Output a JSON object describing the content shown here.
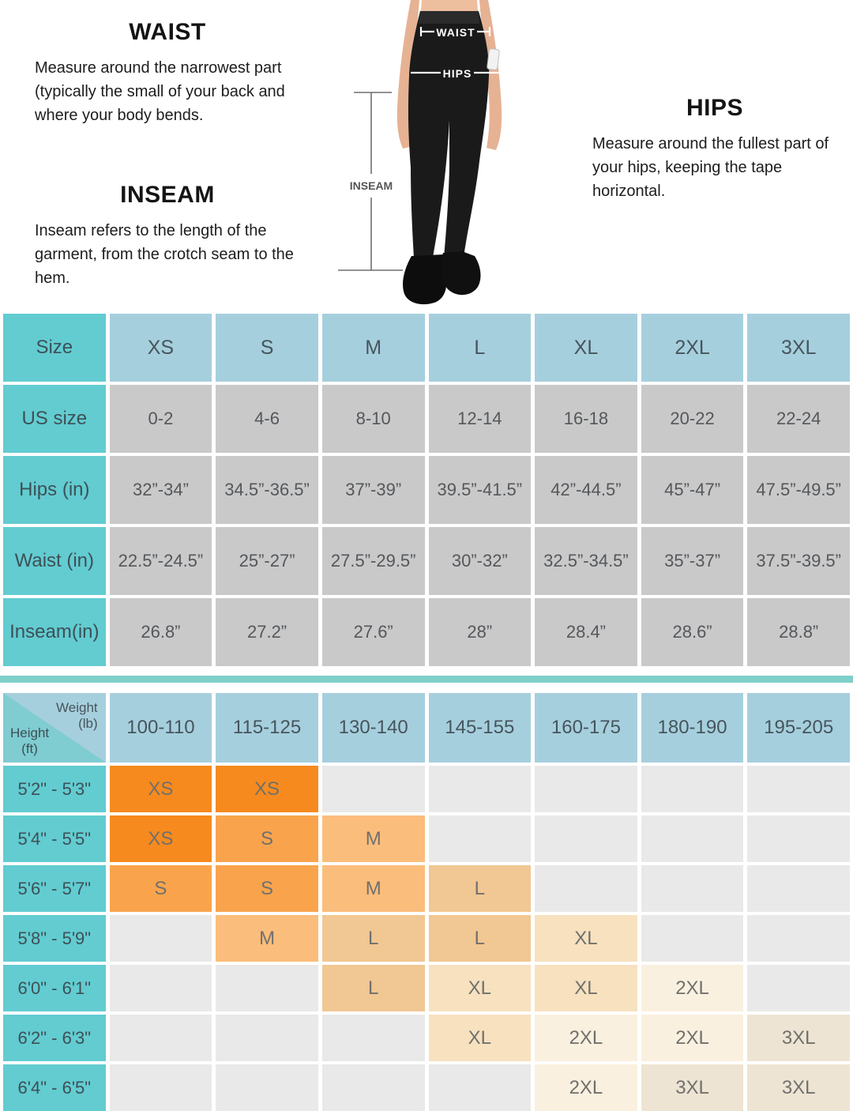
{
  "info_sections": {
    "waist": {
      "title": "WAIST",
      "body": "Measure around the narrowest part (typically the small of your back and where your body bends."
    },
    "inseam": {
      "title": "INSEAM",
      "body": "Inseam refers to the length of the garment, from the crotch seam to the hem."
    },
    "hips": {
      "title": "HIPS",
      "body": "Measure around the fullest part of your hips, keeping the tape horizontal."
    }
  },
  "figure": {
    "waist_label": "WAIST",
    "hips_label": "HIPS",
    "inseam_label": "INSEAM"
  },
  "chart_data": [
    {
      "type": "table",
      "name": "size_chart",
      "header_label": "Size",
      "columns": [
        "XS",
        "S",
        "M",
        "L",
        "XL",
        "2XL",
        "3XL"
      ],
      "rows": [
        {
          "label": "US size",
          "values": [
            "0-2",
            "4-6",
            "8-10",
            "12-14",
            "16-18",
            "20-22",
            "22-24"
          ]
        },
        {
          "label": "Hips (in)",
          "values": [
            "32”-34”",
            "34.5”-36.5”",
            "37”-39”",
            "39.5”-41.5”",
            "42”-44.5”",
            "45”-47”",
            "47.5”-49.5”"
          ]
        },
        {
          "label": "Waist (in)",
          "values": [
            "22.5”-24.5”",
            "25”-27”",
            "27.5”-29.5”",
            "30”-32”",
            "32.5”-34.5”",
            "35”-37”",
            "37.5”-39.5”"
          ]
        },
        {
          "label": "Inseam(in)",
          "values": [
            "26.8”",
            "27.2”",
            "27.6”",
            "28”",
            "28.4”",
            "28.6”",
            "28.8”"
          ]
        }
      ]
    },
    {
      "type": "table",
      "name": "height_weight_fit_matrix",
      "corner": {
        "weight": [
          "Weight",
          "(lb)"
        ],
        "height": [
          "Height",
          "(ft)"
        ]
      },
      "columns": [
        "100-110",
        "115-125",
        "130-140",
        "145-155",
        "160-175",
        "180-190",
        "195-205"
      ],
      "rows": [
        {
          "height": "5'2\" - 5'3\"",
          "cells": [
            "XS",
            "XS",
            null,
            null,
            null,
            null,
            null
          ]
        },
        {
          "height": "5'4\" - 5'5\"",
          "cells": [
            "XS",
            "S",
            "M",
            null,
            null,
            null,
            null
          ]
        },
        {
          "height": "5'6\" - 5'7\"",
          "cells": [
            "S",
            "S",
            "M",
            "L",
            null,
            null,
            null
          ]
        },
        {
          "height": "5'8\" - 5'9\"",
          "cells": [
            null,
            "M",
            "L",
            "L",
            "XL",
            null,
            null
          ]
        },
        {
          "height": "6'0\" - 6'1\"",
          "cells": [
            null,
            null,
            "L",
            "XL",
            "XL",
            "2XL",
            null
          ]
        },
        {
          "height": "6'2\" - 6'3\"",
          "cells": [
            null,
            null,
            null,
            "XL",
            "2XL",
            "2XL",
            "3XL"
          ]
        },
        {
          "height": "6'4\" - 6'5\"",
          "cells": [
            null,
            null,
            null,
            null,
            "2XL",
            "3XL",
            "3XL"
          ]
        }
      ],
      "size_colors": {
        "XS": "#f68a1e",
        "S": "#f9a44c",
        "M": "#fbbd7b",
        "L": "#f1c793",
        "XL": "#f7e1bf",
        "2XL": "#faf0df",
        "3XL": "#eee4d3"
      }
    }
  ],
  "colors": {
    "teal_header": "#62ccd1",
    "light_blue_header": "#a6cfdd",
    "table_cell_gray": "#c9c9c9",
    "empty_cell_gray": "#e9e9e9",
    "divider_teal": "#7fcfcb",
    "corner_triangle_teal": "#7fccd1",
    "leggings_black": "#1a1a1a",
    "skin_tone": "#e6b294"
  }
}
